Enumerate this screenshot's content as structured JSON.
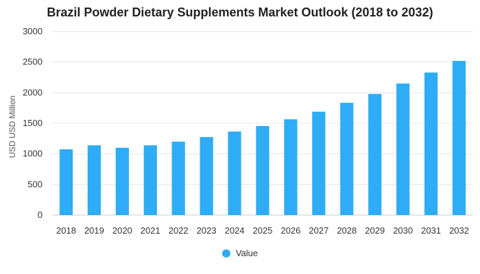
{
  "chart_data": {
    "type": "bar",
    "title": "Brazil Powder Dietary Supplements Market Outlook (2018 to 2032)",
    "xlabel": "",
    "ylabel": "USD USD Million",
    "ylim": [
      0,
      3000
    ],
    "yticks": [
      0,
      500,
      1000,
      1500,
      2000,
      2500,
      3000
    ],
    "categories": [
      "2018",
      "2019",
      "2020",
      "2021",
      "2022",
      "2023",
      "2024",
      "2025",
      "2026",
      "2027",
      "2028",
      "2029",
      "2030",
      "2031",
      "2032"
    ],
    "series": [
      {
        "name": "Value",
        "color": "#2eadf6",
        "values": [
          1075,
          1140,
          1100,
          1140,
          1200,
          1275,
          1365,
          1455,
          1565,
          1690,
          1835,
          1980,
          2150,
          2330,
          2520
        ]
      }
    ],
    "grid": true,
    "legend_position": "bottom-center"
  }
}
